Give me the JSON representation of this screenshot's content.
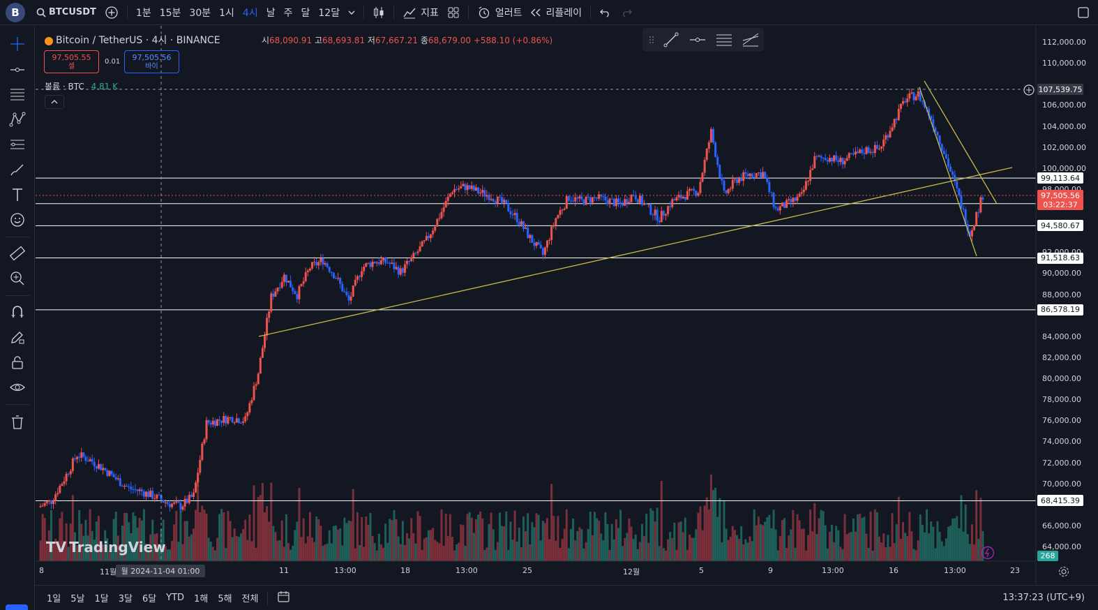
{
  "topbar": {
    "symbol": "BTCUSDT",
    "intervals": [
      "1분",
      "15분",
      "30분",
      "1시",
      "4시",
      "날",
      "주",
      "달",
      "12달"
    ],
    "active_interval": "4시",
    "indicators_label": "지표",
    "alert_label": "얼러트",
    "replay_label": "리플레이"
  },
  "legend": {
    "title": "Bitcoin / TetherUS · 4시 · BINANCE",
    "open_label": "시",
    "open": "68,090.91",
    "high_label": "고",
    "high": "68,693.81",
    "low_label": "저",
    "low": "67,667.21",
    "close_label": "종",
    "close": "68,679.00",
    "change": "+588.10 (+0.86%)",
    "sell_price": "97,505.55",
    "sell_label": "셀",
    "spread": "0.01",
    "buy_price": "97,505.56",
    "buy_label": "바이",
    "volume_label": "볼륨 · BTC",
    "volume_value": "4.81 K"
  },
  "colors": {
    "up": "#ef5350",
    "down": "#2962ff",
    "bg": "#131722",
    "trend": "#c9b94a",
    "hline": "#ffffff"
  },
  "price_axis": [
    "112,000.00",
    "110,000.00",
    "106,000.00",
    "104,000.00",
    "102,000.00",
    "100,000.00",
    "98,000.00",
    "92,000.00",
    "90,000.00",
    "88,000.00",
    "84,000.00",
    "82,000.00",
    "80,000.00",
    "78,000.00",
    "76,000.00",
    "74,000.00",
    "72,000.00",
    "70,000.00",
    "66,000.00",
    "64,000.00"
  ],
  "horizontal_lines": [
    "107,539.75",
    "99,113.64",
    "96,680.28",
    "94,580.67",
    "91,518.63",
    "86,578.19",
    "68,415.39"
  ],
  "current_price": {
    "value": "97,505.56",
    "countdown": "03:22:37"
  },
  "volume_badge": "268",
  "time_axis": [
    "8",
    "11월",
    "11",
    "13:00",
    "18",
    "13:00",
    "25",
    "12월",
    "5",
    "9",
    "13:00",
    "16",
    "13:00",
    "23"
  ],
  "crosshair_time": "월 2024-11-04   01:00",
  "watermark": "TradingView",
  "bottombar": {
    "ranges": [
      "1일",
      "5날",
      "1달",
      "3달",
      "6달",
      "YTD",
      "1해",
      "5해",
      "전체"
    ],
    "clock": "13:37:23 (UTC+9)"
  },
  "chart_data": {
    "type": "candlestick",
    "title": "Bitcoin / TetherUS · 4시 · BINANCE",
    "ylim": [
      63000,
      113000
    ],
    "series": [
      {
        "name": "price",
        "values": [
          67800,
          68400,
          70500,
          72800,
          72300,
          71500,
          70500,
          69600,
          69300,
          68800,
          68200,
          67900,
          68900,
          75800,
          76100,
          76300,
          76100,
          80600,
          87800,
          89800,
          88000,
          90600,
          91300,
          89700,
          87400,
          90600,
          91200,
          91100,
          90200,
          91600,
          93200,
          95500,
          98000,
          98300,
          97800,
          97400,
          96600,
          95300,
          93400,
          91800,
          95300,
          97300,
          96900,
          97200,
          97000,
          96600,
          97600,
          96400,
          95300,
          96900,
          97500,
          97900,
          103500,
          97500,
          99000,
          99500,
          99600,
          96100,
          96700,
          97400,
          100900,
          101100,
          100700,
          101200,
          101800,
          101900,
          104200,
          106600,
          107100,
          104800,
          101600,
          97900,
          93800,
          97500
        ]
      }
    ],
    "horizontal_levels": [
      107539.75,
      99113.64,
      96680.28,
      94580.67,
      91518.63,
      86578.19,
      68415.39
    ]
  }
}
